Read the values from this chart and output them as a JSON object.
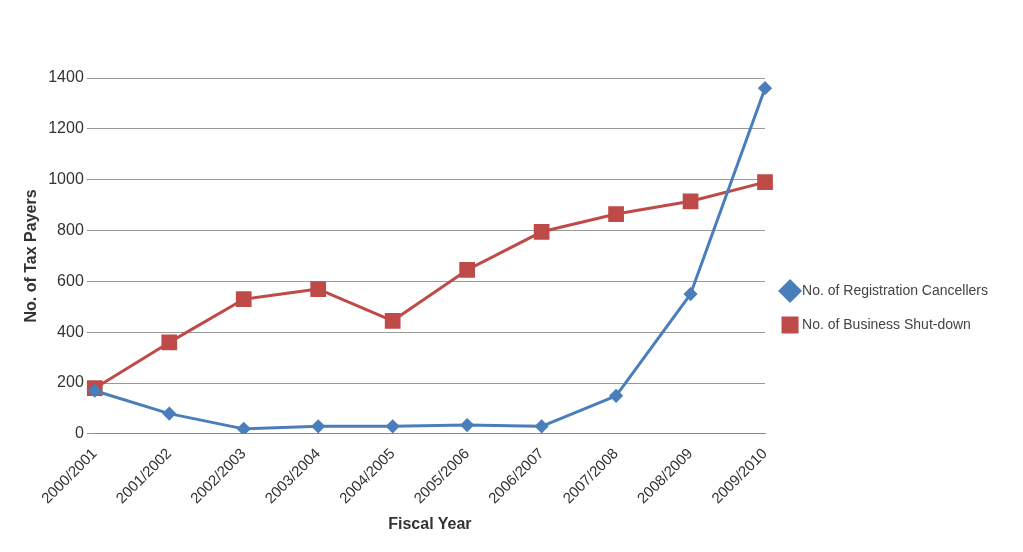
{
  "chart_data": {
    "type": "line",
    "xlabel": "Fiscal Year",
    "ylabel": "No. of Tax Payers",
    "categories": [
      "2000/2001",
      "2001/2002",
      "2002/2003",
      "2003/2004",
      "2004/2005",
      "2005/2006",
      "2006/2007",
      "2007/2008",
      "2008/2009",
      "2009/2010"
    ],
    "series": [
      {
        "name": "No. of Registration Cancellers",
        "color": "#4a7ebb",
        "marker": "diamond",
        "values": [
          170,
          80,
          20,
          30,
          30,
          35,
          30,
          150,
          550,
          1360
        ]
      },
      {
        "name": "No. of Business Shut-down",
        "color": "#be4b48",
        "marker": "square",
        "values": [
          180,
          360,
          530,
          570,
          445,
          645,
          795,
          865,
          915,
          990
        ]
      }
    ],
    "ylim": [
      0,
      1400
    ],
    "yticks": [
      0,
      200,
      400,
      600,
      800,
      1000,
      1200,
      1400
    ],
    "grid": "y",
    "legend": "right",
    "line_style": "solid"
  }
}
